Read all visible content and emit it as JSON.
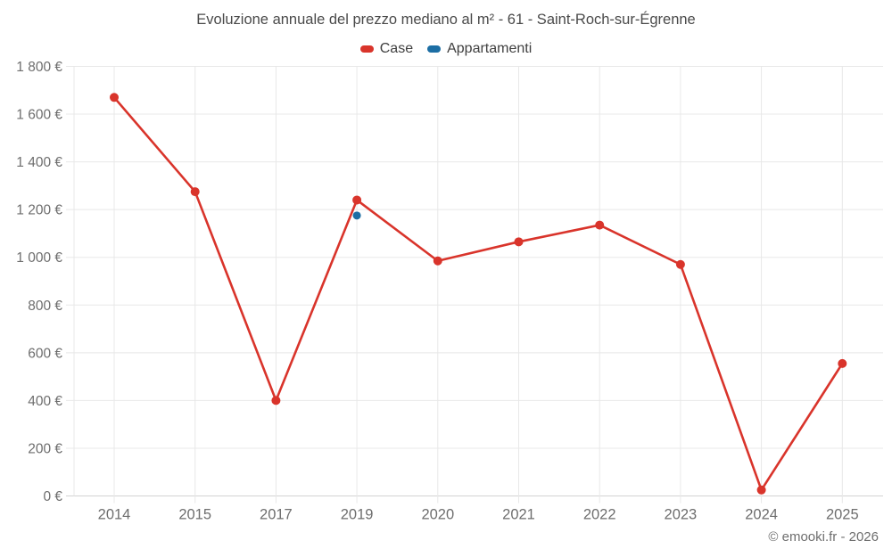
{
  "title": "Evoluzione annuale del prezzo mediano al m² - 61 - Saint-Roch-sur-Égrenne",
  "footer": "© emooki.fr - 2026",
  "colors": {
    "case_red": "#d9342b",
    "appartamenti_blue": "#1c6ea4",
    "gridline": "#e8e8e8",
    "axis_line": "#d2d2d2",
    "tick_label": "#6e6e6e",
    "title_text": "#4a4a4a"
  },
  "chart_data": {
    "type": "line",
    "title": "Evoluzione annuale del prezzo mediano al m² - 61 - Saint-Roch-sur-Égrenne",
    "categories": [
      "2014",
      "2015",
      "2017",
      "2019",
      "2020",
      "2021",
      "2022",
      "2023",
      "2024",
      "2025"
    ],
    "series": [
      {
        "name": "Case",
        "color": "#d9342b",
        "values": [
          1670,
          1275,
          400,
          1240,
          985,
          1065,
          1135,
          970,
          25,
          555
        ]
      },
      {
        "name": "Appartamenti",
        "color": "#1c6ea4",
        "values": [
          null,
          null,
          null,
          1175,
          null,
          null,
          null,
          null,
          null,
          null
        ]
      }
    ],
    "xlabel": "",
    "ylabel": "",
    "ylim": [
      0,
      1800
    ],
    "y_tick_step": 200,
    "y_tick_labels": [
      "0 €",
      "200 €",
      "400 €",
      "600 €",
      "800 €",
      "1 000 €",
      "1 200 €",
      "1 400 €",
      "1 600 €",
      "1 800 €"
    ],
    "grid": true,
    "legend_position": "top"
  }
}
